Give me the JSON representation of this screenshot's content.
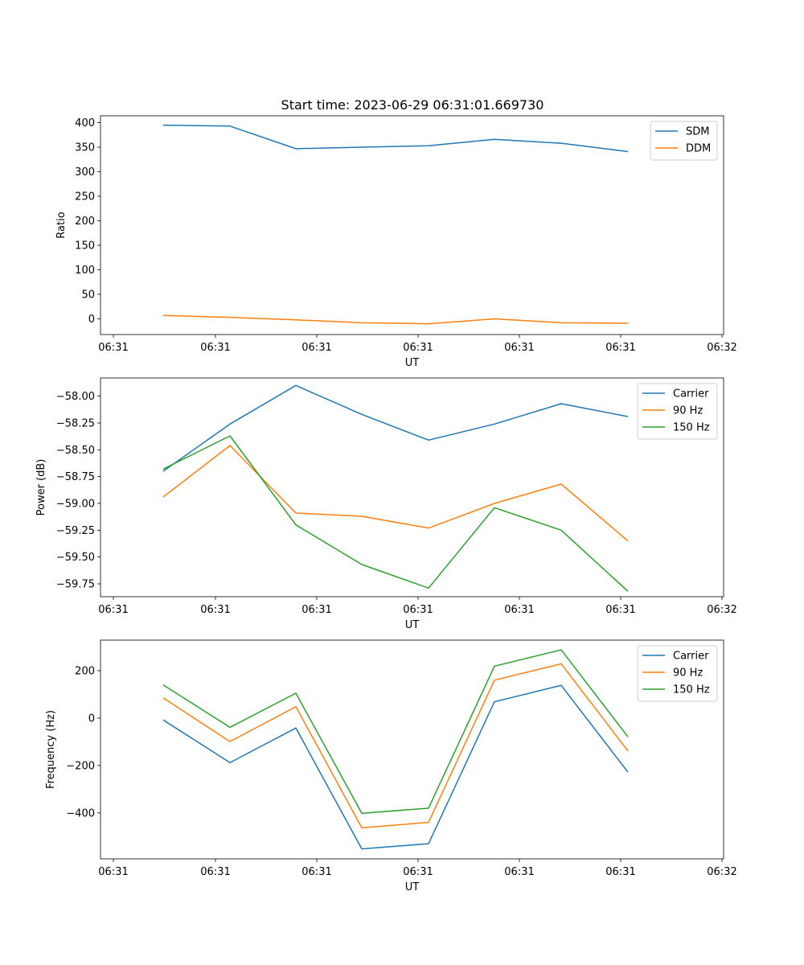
{
  "figure": {
    "title": "Start time: 2023-06-29 06:31:01.669730"
  },
  "chart_data": [
    {
      "type": "line",
      "title": "Start time: 2023-06-29 06:31:01.669730",
      "xlabel": "UT",
      "ylabel": "Ratio",
      "xtick_labels": [
        "06:31",
        "06:31",
        "06:31",
        "06:31",
        "06:31",
        "06:31",
        "06:32"
      ],
      "ylim": [
        -32,
        414
      ],
      "yticks": [
        0,
        50,
        100,
        150,
        200,
        250,
        300,
        350,
        400
      ],
      "ytick_labels": [
        "0",
        "50",
        "100",
        "150",
        "200",
        "250",
        "300",
        "350",
        "400"
      ],
      "legend": "top-right",
      "grid": false,
      "series": [
        {
          "name": "SDM",
          "color": "#1f77b4",
          "values": [
            395,
            393,
            347,
            350,
            353,
            366,
            358,
            341
          ]
        },
        {
          "name": "DDM",
          "color": "#ff7f0e",
          "values": [
            7,
            3,
            -2,
            -8,
            -10,
            0,
            -8,
            -9
          ]
        }
      ]
    },
    {
      "type": "line",
      "title": "",
      "xlabel": "UT",
      "ylabel": "Power (dB)",
      "xtick_labels": [
        "06:31",
        "06:31",
        "06:31",
        "06:31",
        "06:31",
        "06:31",
        "06:32"
      ],
      "ylim": [
        -59.87,
        -57.83
      ],
      "yticks": [
        -59.75,
        -59.5,
        -59.25,
        -59.0,
        -58.75,
        -58.5,
        -58.25,
        -58.0
      ],
      "ytick_labels": [
        "−59.75",
        "−59.50",
        "−59.25",
        "−59.00",
        "−58.75",
        "−58.50",
        "−58.25",
        "−58.00"
      ],
      "legend": "top-right",
      "grid": false,
      "series": [
        {
          "name": "Carrier",
          "color": "#1f77b4",
          "values": [
            -58.7,
            -58.26,
            -57.9,
            -58.17,
            -58.41,
            -58.26,
            -58.07,
            -58.19
          ]
        },
        {
          "name": "90 Hz",
          "color": "#ff7f0e",
          "values": [
            -58.94,
            -58.46,
            -59.09,
            -59.12,
            -59.23,
            -59.0,
            -58.82,
            -59.35
          ]
        },
        {
          "name": "150 Hz",
          "color": "#2ca02c",
          "values": [
            -58.68,
            -58.37,
            -59.2,
            -59.57,
            -59.79,
            -59.04,
            -59.25,
            -59.82
          ]
        }
      ]
    },
    {
      "type": "line",
      "title": "",
      "xlabel": "UT",
      "ylabel": "Frequency (Hz)",
      "xtick_labels": [
        "06:31",
        "06:31",
        "06:31",
        "06:31",
        "06:31",
        "06:31",
        "06:32"
      ],
      "ylim": [
        -594,
        329
      ],
      "yticks": [
        -400,
        -200,
        0,
        200
      ],
      "ytick_labels": [
        "−400",
        "−200",
        "0",
        "200"
      ],
      "legend": "top-right",
      "grid": false,
      "series": [
        {
          "name": "Carrier",
          "color": "#1f77b4",
          "values": [
            -8,
            -188,
            -42,
            -552,
            -530,
            69,
            138,
            -228
          ]
        },
        {
          "name": "90 Hz",
          "color": "#ff7f0e",
          "values": [
            85,
            -99,
            48,
            -463,
            -440,
            160,
            229,
            -139
          ]
        },
        {
          "name": "150 Hz",
          "color": "#2ca02c",
          "values": [
            140,
            -39,
            105,
            -402,
            -380,
            219,
            288,
            -79
          ]
        }
      ]
    }
  ]
}
